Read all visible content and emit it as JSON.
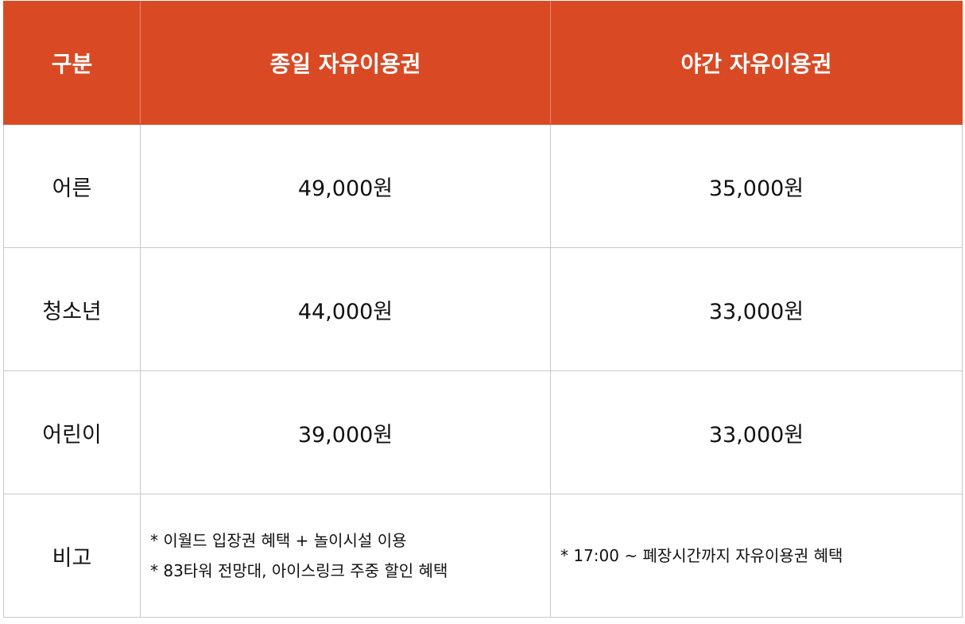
{
  "table": {
    "headers": [
      "구분",
      "종일 자유이용권",
      "야간 자유이용권"
    ],
    "rows": [
      {
        "category": "어른",
        "day_pass": "49,000원",
        "night_pass": "35,000원"
      },
      {
        "category": "청소년",
        "day_pass": "44,000원",
        "night_pass": "33,000원"
      },
      {
        "category": "어린이",
        "day_pass": "39,000원",
        "night_pass": "33,000원"
      }
    ],
    "notes": {
      "label": "비고",
      "day_pass_notes": [
        "* 이월드 입장권 혜택 + 놀이시설 이용",
        "* 83타워 전망대, 아이스링크 주중 할인 혜택"
      ],
      "night_pass_notes": [
        "* 17:00 ~ 폐장시간까지 자유이용권 혜택"
      ]
    }
  },
  "colors": {
    "header_bg": "#d94a24",
    "header_text": "#ffffff",
    "border": "#c8c8c8"
  }
}
